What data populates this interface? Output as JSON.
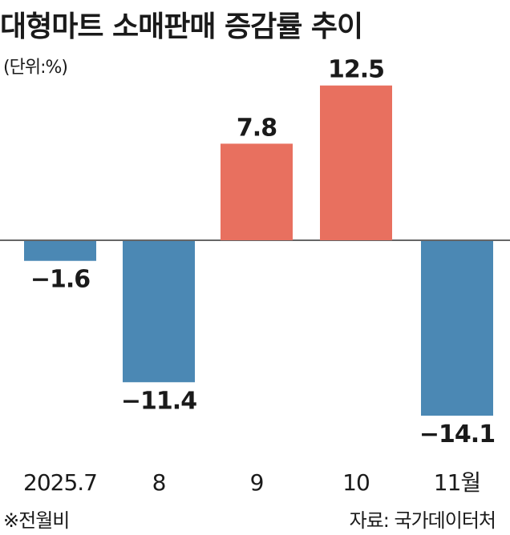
{
  "title": "대형마트 소매판매 증감률 추이",
  "unit": "(단위:%)",
  "note": "※전월비",
  "source": "자료: 국가데이터처",
  "colors": {
    "positive": "#e8705f",
    "negative": "#4b88b4",
    "axis": "#333333"
  },
  "chart_data": {
    "type": "bar",
    "categories": [
      "2025.7",
      "8",
      "9",
      "10",
      "11월"
    ],
    "values": [
      -1.6,
      -11.4,
      7.8,
      12.5,
      -14.1
    ],
    "value_labels": [
      "−1.6",
      "−11.4",
      "7.8",
      "12.5",
      "−14.1"
    ],
    "ylim": [
      -14.1,
      12.5
    ],
    "grid": false,
    "legend": "none"
  }
}
